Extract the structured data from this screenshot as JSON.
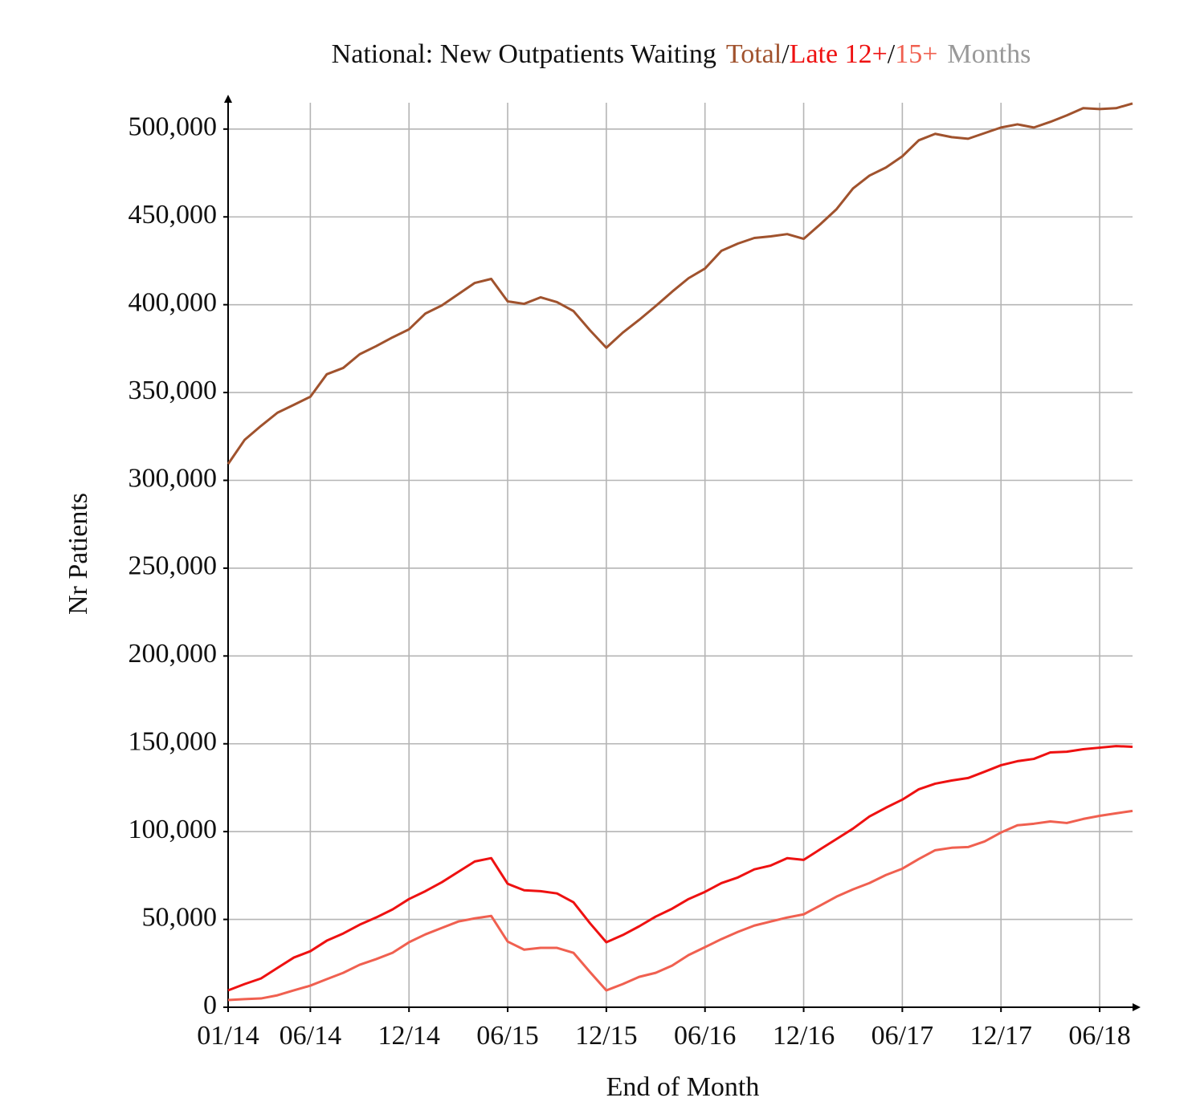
{
  "chart_data": {
    "type": "line",
    "title": "National: New Outpatients Waiting",
    "title_separator": "/",
    "title_suffix": "Months",
    "title_suffix_color": "#999999",
    "xlabel": "End of Month",
    "ylabel": "Nr Patients",
    "grid": true,
    "categories": [
      "01/14",
      null,
      null,
      null,
      null,
      "06/14",
      null,
      null,
      null,
      null,
      null,
      "12/14",
      null,
      null,
      null,
      null,
      null,
      "06/15",
      null,
      null,
      null,
      null,
      null,
      "12/15",
      null,
      null,
      null,
      null,
      null,
      "06/16",
      null,
      null,
      null,
      null,
      null,
      "12/16",
      null,
      null,
      null,
      null,
      null,
      "06/17",
      null,
      null,
      null,
      null,
      null,
      "12/17",
      null,
      null,
      null,
      null,
      null,
      "06/18",
      null,
      null
    ],
    "ylim": [
      0,
      515000
    ],
    "yticks": [
      0,
      {
        "value": 50000,
        "label": "50,000"
      },
      {
        "value": 100000,
        "label": "100,000"
      },
      {
        "value": 150000,
        "label": "150,000"
      },
      {
        "value": 200000,
        "label": "200,000"
      },
      {
        "value": 250000,
        "label": "250,000"
      },
      {
        "value": 300000,
        "label": "300,000"
      },
      {
        "value": 350000,
        "label": "350,000"
      },
      {
        "value": 400000,
        "label": "400,000"
      },
      {
        "value": 450000,
        "label": "450,000"
      },
      {
        "value": 500000,
        "label": "500,000"
      }
    ],
    "series": [
      {
        "name": "Total",
        "color": "#a0522d",
        "values": [
          309300,
          323000,
          331000,
          338500,
          343000,
          347600,
          360400,
          364000,
          371800,
          376400,
          381400,
          386000,
          395000,
          399600,
          406000,
          412400,
          414700,
          401900,
          400500,
          404200,
          401500,
          396400,
          385500,
          375500,
          384100,
          391400,
          399200,
          407400,
          415100,
          420600,
          430700,
          434800,
          438000,
          438900,
          440200,
          437500,
          445700,
          454400,
          466200,
          473500,
          478100,
          484500,
          493600,
          497300,
          495400,
          494500,
          497700,
          500900,
          502700,
          500900,
          504100,
          507800,
          511900,
          511400,
          511900,
          514600
        ]
      },
      {
        "name": "Late 12+",
        "color": "#ee1111",
        "values": [
          9600,
          13200,
          16400,
          22400,
          28300,
          31900,
          37900,
          42000,
          47000,
          51100,
          55700,
          61600,
          66100,
          71200,
          77100,
          83000,
          84900,
          70300,
          66600,
          66100,
          64800,
          59800,
          47900,
          37000,
          41100,
          46100,
          51600,
          56100,
          61600,
          65700,
          70700,
          73900,
          78500,
          80700,
          84900,
          83900,
          89900,
          95800,
          101700,
          108600,
          113600,
          118200,
          124100,
          127300,
          129100,
          130500,
          134100,
          137800,
          140100,
          141400,
          145100,
          145500,
          146900,
          147800,
          148700,
          148300
        ]
      },
      {
        "name": "15+",
        "color": "#f06050",
        "values": [
          4100,
          4600,
          5000,
          6800,
          9600,
          12300,
          16000,
          19600,
          24200,
          27400,
          31000,
          37000,
          41500,
          45200,
          48800,
          50600,
          52000,
          37400,
          32800,
          33800,
          33800,
          31000,
          20100,
          9600,
          13200,
          17300,
          19600,
          23700,
          29700,
          34200,
          38800,
          42900,
          46500,
          48800,
          51100,
          52900,
          57900,
          63000,
          67100,
          70700,
          75300,
          78900,
          84400,
          89400,
          90800,
          91200,
          94400,
          99500,
          103600,
          104500,
          105800,
          104900,
          107200,
          109000,
          110400,
          111800
        ]
      }
    ]
  }
}
